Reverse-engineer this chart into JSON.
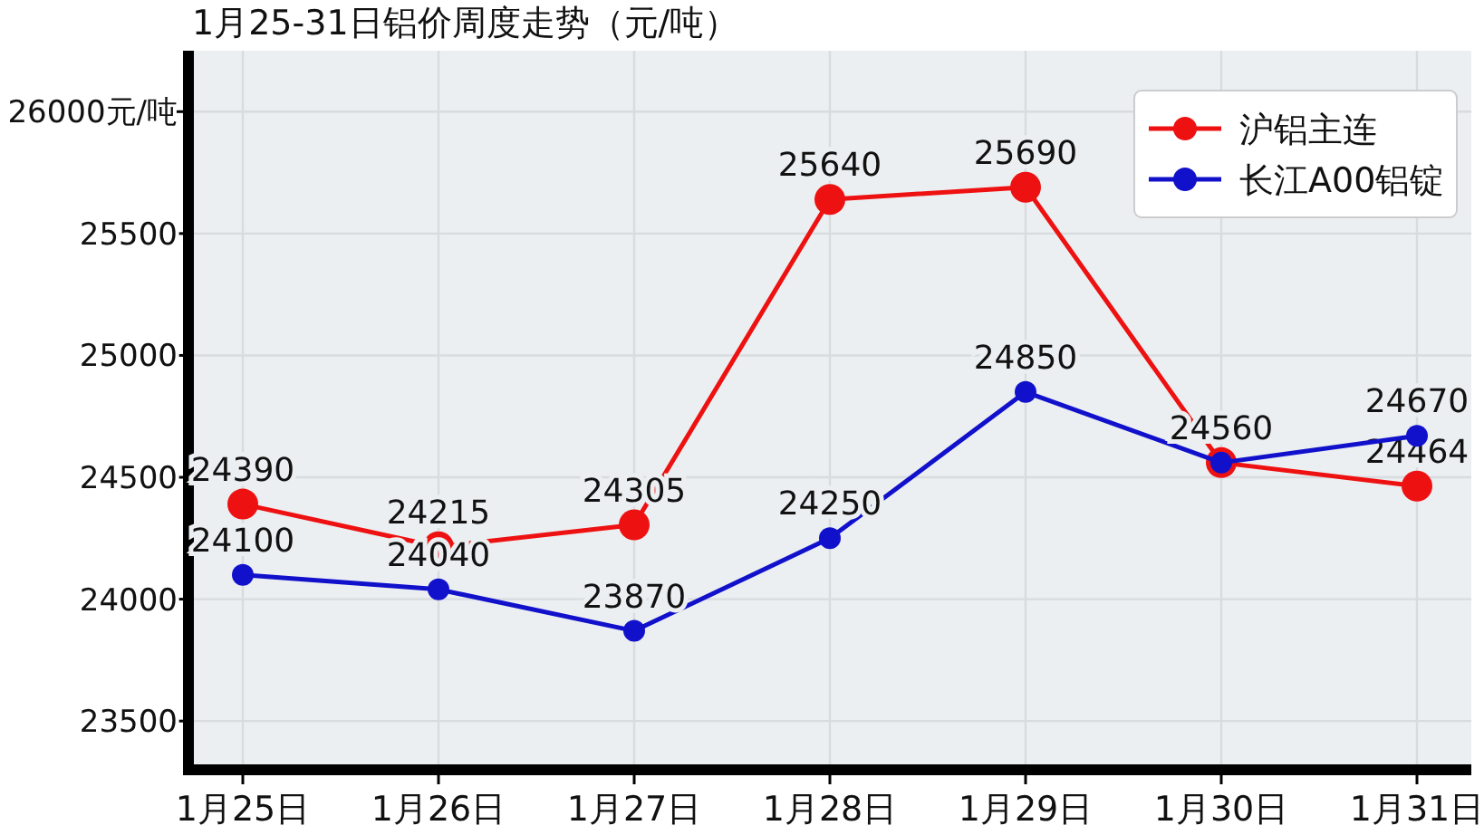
{
  "chart_data": {
    "type": "line",
    "title": "1月25-31日铝价周度走势（元/吨）",
    "categories": [
      "1月25日",
      "1月26日",
      "1月27日",
      "1月28日",
      "1月29日",
      "1月30日",
      "1月31日"
    ],
    "series": [
      {
        "name": "沪铝主连",
        "color": "#ee1111",
        "values": [
          24390,
          24215,
          24305,
          25640,
          25690,
          24560,
          24464
        ],
        "value_labels": [
          "24390",
          "24215",
          "24305",
          "25640",
          "25690",
          null,
          "24464"
        ]
      },
      {
        "name": "长江A00铝锭",
        "color": "#1111cc",
        "values": [
          24100,
          24040,
          23870,
          24250,
          24850,
          24560,
          24670
        ],
        "value_labels": [
          "24100",
          "24040",
          "23870",
          "24250",
          "24850",
          "24560",
          "24670"
        ]
      }
    ],
    "ylim": [
      23300,
      26250
    ],
    "yticks": [
      23500,
      24000,
      24500,
      25000,
      25500,
      {
        "value": 26000,
        "label": "26000元/吨"
      }
    ],
    "grid": true,
    "legend": "top right",
    "marker": "circle",
    "line_style": "solid"
  }
}
